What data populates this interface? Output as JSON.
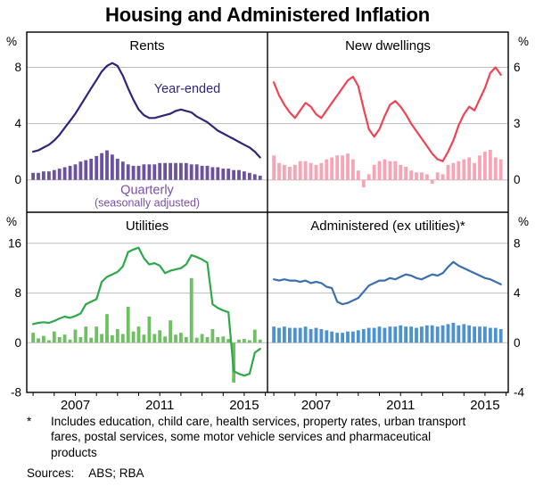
{
  "title": "Housing and Administered Inflation",
  "footnote": {
    "marker": "*",
    "text": "Includes education, child care, health services, property rates, urban transport fares, postal services, some motor vehicle services and pharmaceutical products"
  },
  "sources": {
    "label": "Sources:",
    "value": "ABS; RBA"
  },
  "axis": {
    "xlim": [
      2004.7,
      2016.1
    ],
    "year_range": [
      2005,
      2016
    ],
    "x_labels": [
      2007,
      2011,
      2015
    ],
    "percent": "%",
    "gridline_color": "#bdbdbd",
    "frame_color": "#000000"
  },
  "chart_data": [
    {
      "id": "rents",
      "type": "bar+line",
      "row": 0,
      "col": 0,
      "title": "Rents",
      "value_axis": "left",
      "ylim": [
        -2.3,
        10.5
      ],
      "gridlines": [
        0,
        4,
        8
      ],
      "tick_labels": [
        {
          "value": 8,
          "label": "8"
        },
        {
          "value": 4,
          "label": "4"
        },
        {
          "value": 0,
          "label": "0"
        }
      ],
      "x_start": 2005.0,
      "x_step": 0.25,
      "line_color": "#312579",
      "bar_color": "#6b519e",
      "line_label": "Year-ended",
      "bar_label": "Quarterly (seasonally adjusted)",
      "annotations": [
        {
          "text": "Year-ended",
          "x": 2012.3,
          "y": 6.2,
          "color": "#312579",
          "size": 14.5
        },
        {
          "text": "Quarterly",
          "x": 2010.4,
          "y": -1.0,
          "color": "#7c4ea5",
          "size": 14.5
        },
        {
          "text": "(seasonally adjusted)",
          "x": 2010.4,
          "y": -1.9,
          "color": "#7c4ea5",
          "size": 12.5
        }
      ],
      "line": [
        2.0,
        2.1,
        2.3,
        2.5,
        2.8,
        3.2,
        3.7,
        4.2,
        4.7,
        5.3,
        5.9,
        6.5,
        7.1,
        7.7,
        8.1,
        8.3,
        8.1,
        7.4,
        6.5,
        5.7,
        5.0,
        4.6,
        4.4,
        4.4,
        4.5,
        4.6,
        4.7,
        4.9,
        5.0,
        4.9,
        4.8,
        4.5,
        4.3,
        4.1,
        3.8,
        3.5,
        3.3,
        3.1,
        2.9,
        2.7,
        2.5,
        2.3,
        2.0,
        1.6
      ],
      "bars": [
        0.5,
        0.5,
        0.6,
        0.6,
        0.7,
        0.8,
        0.9,
        1.0,
        1.1,
        1.3,
        1.4,
        1.5,
        1.7,
        1.9,
        2.1,
        1.8,
        1.5,
        1.3,
        1.1,
        1.0,
        1.0,
        1.1,
        1.1,
        1.1,
        1.2,
        1.2,
        1.2,
        1.2,
        1.2,
        1.2,
        1.1,
        1.1,
        1.0,
        1.0,
        0.9,
        0.9,
        0.8,
        0.8,
        0.7,
        0.7,
        0.6,
        0.5,
        0.4,
        0.3
      ]
    },
    {
      "id": "new-dwellings",
      "type": "bar+line",
      "row": 0,
      "col": 1,
      "title": "New dwellings",
      "value_axis": "right",
      "ylim": [
        -1.725,
        7.875
      ],
      "gridlines": [
        0,
        3,
        6
      ],
      "tick_labels": [
        {
          "value": 6,
          "label": "6"
        },
        {
          "value": 3,
          "label": "3"
        },
        {
          "value": 0,
          "label": "0"
        }
      ],
      "x_start": 2005.0,
      "x_step": 0.25,
      "line_color": "#ef4453",
      "bar_color": "#f8a4b6",
      "line_label": "Year-ended",
      "bar_label": "Quarterly (seasonally adjusted)",
      "annotations": [],
      "line": [
        5.2,
        4.5,
        4.0,
        3.6,
        3.3,
        3.7,
        4.1,
        3.9,
        3.5,
        3.3,
        3.7,
        4.1,
        4.5,
        4.9,
        5.3,
        5.5,
        5.0,
        3.8,
        2.7,
        2.3,
        2.7,
        3.4,
        4.0,
        4.2,
        3.9,
        3.5,
        3.0,
        2.6,
        2.2,
        1.8,
        1.4,
        1.1,
        1.0,
        1.5,
        2.1,
        2.9,
        3.5,
        3.9,
        3.7,
        4.3,
        4.9,
        5.7,
        6.0,
        5.6
      ],
      "bars": [
        1.3,
        0.9,
        0.8,
        0.7,
        0.8,
        1.0,
        1.0,
        0.9,
        0.8,
        0.9,
        1.1,
        1.2,
        1.3,
        1.3,
        1.4,
        1.1,
        0.5,
        -0.4,
        0.3,
        0.8,
        1.0,
        1.1,
        1.0,
        1.0,
        0.8,
        0.7,
        0.5,
        0.4,
        0.4,
        0.3,
        -0.2,
        0.4,
        0.3,
        0.8,
        0.9,
        1.0,
        1.1,
        1.2,
        0.9,
        1.3,
        1.5,
        1.6,
        1.2,
        1.1
      ]
    },
    {
      "id": "utilities",
      "type": "bar+line",
      "row": 1,
      "col": 0,
      "title": "Utilities",
      "value_axis": "left",
      "ylim": [
        -8,
        21
      ],
      "gridlines": [
        0,
        8,
        16
      ],
      "tick_labels": [
        {
          "value": 16,
          "label": "16"
        },
        {
          "value": 8,
          "label": "8"
        },
        {
          "value": 0,
          "label": "0"
        },
        {
          "value": -8,
          "label": "-8"
        }
      ],
      "x_start": 2005.0,
      "x_step": 0.25,
      "line_color": "#2fa84a",
      "bar_color": "#6fbf63",
      "line_label": "Year-ended",
      "bar_label": "Quarterly (seasonally adjusted)",
      "annotations": [],
      "line": [
        3.0,
        3.2,
        3.3,
        3.2,
        3.5,
        3.9,
        4.2,
        4.0,
        4.3,
        4.7,
        6.2,
        6.6,
        7.0,
        9.8,
        10.6,
        11.0,
        11.4,
        12.3,
        14.6,
        15.0,
        15.3,
        13.6,
        12.6,
        12.8,
        12.4,
        11.2,
        11.6,
        11.8,
        12.0,
        12.6,
        14.1,
        13.8,
        13.4,
        12.9,
        6.2,
        5.6,
        5.2,
        4.9,
        -4.6,
        -5.0,
        -5.3,
        -5.0,
        -1.6,
        -1.0
      ],
      "bars": [
        1.6,
        0.7,
        1.1,
        0.4,
        1.8,
        0.9,
        1.3,
        0.5,
        2.1,
        0.9,
        2.6,
        0.8,
        2.6,
        1.4,
        4.6,
        1.2,
        2.2,
        1.4,
        5.8,
        1.8,
        2.6,
        1.3,
        4.2,
        1.4,
        2.0,
        1.0,
        3.6,
        1.3,
        1.6,
        0.9,
        10.4,
        0.8,
        1.4,
        0.9,
        2.2,
        0.9,
        1.0,
        0.6,
        -6.4,
        0.5,
        0.6,
        0.4,
        2.1,
        0.5
      ]
    },
    {
      "id": "administered",
      "type": "bar+line",
      "row": 1,
      "col": 1,
      "title": "Administered (ex utilities)*",
      "value_axis": "right",
      "ylim": [
        -4,
        10.5
      ],
      "gridlines": [
        0,
        4,
        8
      ],
      "tick_labels": [
        {
          "value": 8,
          "label": "8"
        },
        {
          "value": 4,
          "label": "4"
        },
        {
          "value": 0,
          "label": "0"
        },
        {
          "value": -4,
          "label": "-4"
        }
      ],
      "x_start": 2005.0,
      "x_step": 0.25,
      "line_color": "#3b6fb0",
      "bar_color": "#4c92d0",
      "line_label": "Year-ended",
      "bar_label": "Quarterly (seasonally adjusted)",
      "annotations": [],
      "line": [
        5.1,
        5.0,
        5.1,
        5.0,
        5.0,
        4.9,
        5.0,
        4.8,
        4.9,
        4.8,
        4.5,
        4.4,
        3.3,
        3.1,
        3.2,
        3.4,
        3.6,
        4.1,
        4.6,
        4.8,
        5.0,
        5.0,
        5.2,
        5.1,
        5.3,
        5.5,
        5.4,
        5.2,
        5.1,
        5.3,
        5.5,
        5.4,
        5.6,
        6.1,
        6.5,
        6.2,
        6.0,
        5.8,
        5.6,
        5.4,
        5.2,
        5.1,
        4.9,
        4.7
      ],
      "bars": [
        1.3,
        1.2,
        1.3,
        1.2,
        1.2,
        1.2,
        1.3,
        1.1,
        1.2,
        1.1,
        1.0,
        0.9,
        0.8,
        0.8,
        0.9,
        0.9,
        1.0,
        1.1,
        1.2,
        1.2,
        1.3,
        1.2,
        1.3,
        1.3,
        1.4,
        1.3,
        1.3,
        1.2,
        1.3,
        1.4,
        1.4,
        1.3,
        1.4,
        1.5,
        1.6,
        1.4,
        1.5,
        1.4,
        1.3,
        1.3,
        1.3,
        1.2,
        1.2,
        1.1
      ]
    }
  ]
}
